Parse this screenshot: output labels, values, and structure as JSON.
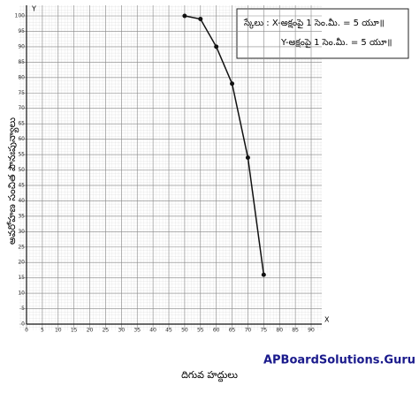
{
  "chart_data": {
    "type": "line",
    "x_label": "దిగువ హద్దులు",
    "y_label": "అవరోహణ సంచిత పౌనఃపున్యాలు",
    "x_axis_marker": "X",
    "y_axis_marker": "Y",
    "scale_lines": [
      "స్కేలు : X-అక్షంపై 1 సెం.మీ. = 5 యూ॥",
      "Y-అక్షంపై 1 సెం.మీ. = 5 యూ॥"
    ],
    "watermark": "APBoardSolutions.Guru",
    "x": [
      50,
      55,
      60,
      65,
      70,
      75
    ],
    "values": [
      100,
      99,
      90,
      78,
      54,
      16
    ],
    "color": "#111111",
    "xlim": [
      0,
      90
    ],
    "ylim": [
      0,
      100
    ],
    "xticks": [
      0,
      5,
      10,
      15,
      20,
      25,
      30,
      35,
      40,
      45,
      50,
      55,
      60,
      65,
      70,
      75,
      80,
      85,
      90
    ],
    "yticks": [
      0,
      5,
      10,
      15,
      20,
      25,
      30,
      35,
      40,
      45,
      50,
      55,
      60,
      65,
      70,
      75,
      80,
      85,
      90,
      95,
      100
    ],
    "grid": true
  }
}
